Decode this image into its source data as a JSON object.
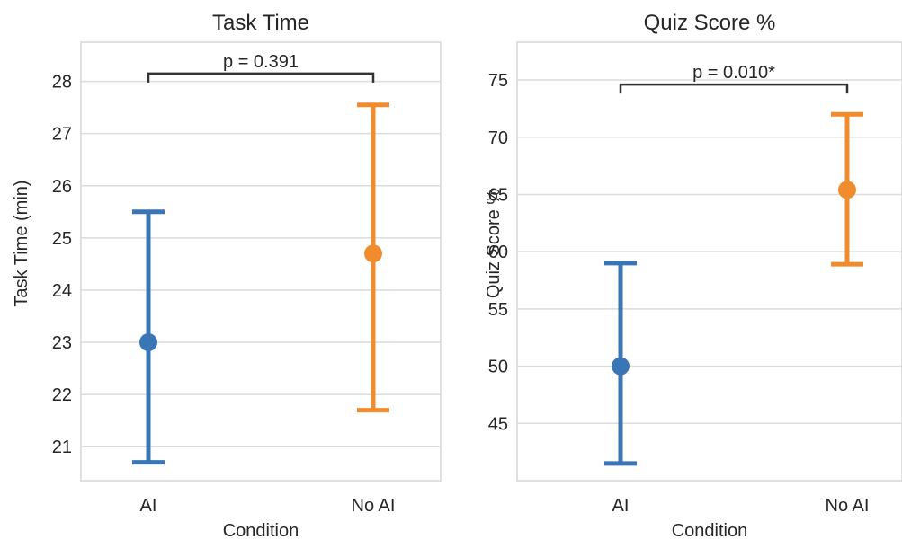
{
  "chart_data": [
    {
      "type": "errorbar",
      "title": "Task Time",
      "xlabel": "Condition",
      "ylabel": "Task Time (min)",
      "categories": [
        "AI",
        "No AI"
      ],
      "ylim": [
        20.35,
        28.75
      ],
      "yticks": [
        21,
        22,
        23,
        24,
        25,
        26,
        27,
        28
      ],
      "grid": true,
      "series": [
        {
          "category": "AI",
          "mean": 23.0,
          "low": 20.7,
          "high": 25.5,
          "color": "#3a75b5"
        },
        {
          "category": "No AI",
          "mean": 24.7,
          "low": 21.7,
          "high": 27.55,
          "color": "#f08c2d"
        }
      ],
      "annotation": {
        "text": "p = 0.391",
        "bracket_y": 28.15
      }
    },
    {
      "type": "errorbar",
      "title": "Quiz Score %",
      "xlabel": "Condition",
      "ylabel": "Quiz Score %",
      "categories": [
        "AI",
        "No AI"
      ],
      "ylim": [
        40.0,
        78.3
      ],
      "yticks": [
        45,
        50,
        55,
        60,
        65,
        70,
        75
      ],
      "grid": true,
      "series": [
        {
          "category": "AI",
          "mean": 50.0,
          "low": 41.5,
          "high": 59.0,
          "color": "#3a75b5"
        },
        {
          "category": "No AI",
          "mean": 65.4,
          "low": 58.9,
          "high": 72.0,
          "color": "#f08c2d"
        }
      ],
      "annotation": {
        "text": "p = 0.010*",
        "bracket_y": 74.6
      }
    }
  ]
}
